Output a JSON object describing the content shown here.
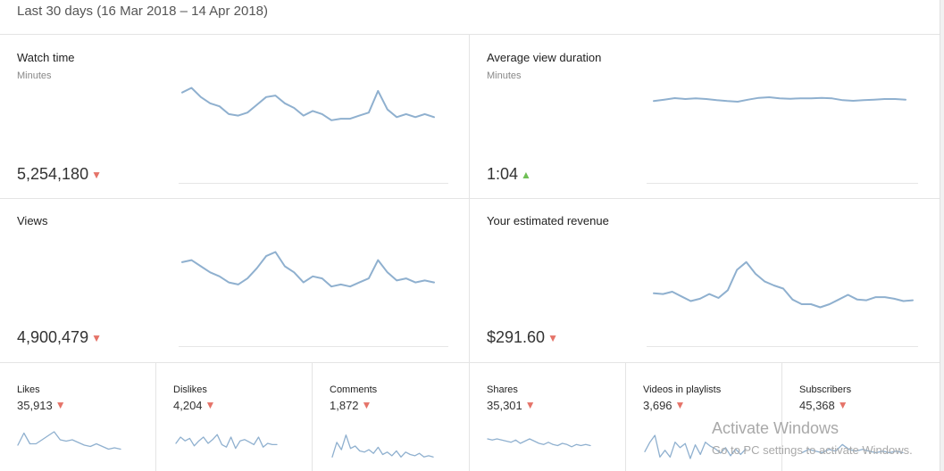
{
  "header": {
    "date_range": "Last 30 days (16 Mar 2018 – 14 Apr 2018)"
  },
  "cards": [
    {
      "title": "Watch time",
      "unit": "Minutes",
      "value": "5,254,180",
      "trend": "▼",
      "series": [
        61,
        64,
        58,
        54,
        52,
        47,
        46,
        48,
        53,
        58,
        59,
        54,
        51,
        46,
        49,
        47,
        43,
        44,
        44,
        46,
        48,
        62,
        50,
        45,
        47,
        45,
        47,
        45
      ]
    },
    {
      "title": "Average view duration",
      "unit": "Minutes",
      "value": "1:04",
      "trend": "▲",
      "series": [
        62.5,
        63.0,
        63.5,
        63.2,
        63.4,
        63.2,
        62.8,
        62.5,
        62.3,
        63.0,
        63.6,
        63.8,
        63.4,
        63.3,
        63.4,
        63.4,
        63.6,
        63.4,
        62.8,
        62.6,
        62.8,
        63.0,
        63.2,
        63.2,
        63.0
      ]
    },
    {
      "title": "Views",
      "unit": "",
      "value": "4,900,479",
      "trend": "▼",
      "series": [
        55,
        56,
        53,
        50,
        48,
        45,
        44,
        47,
        52,
        58,
        60,
        53,
        50,
        45,
        48,
        47,
        43,
        44,
        43,
        45,
        47,
        56,
        50,
        46,
        47,
        45,
        46,
        45
      ]
    },
    {
      "title": "Your estimated revenue",
      "unit": "",
      "value": "$291.60",
      "trend": "▼",
      "series": [
        10.0,
        9.9,
        10.2,
        9.6,
        9.0,
        9.3,
        9.9,
        9.4,
        10.4,
        13.0,
        14.0,
        12.5,
        11.5,
        11.0,
        10.6,
        9.2,
        8.6,
        8.6,
        8.2,
        8.6,
        9.2,
        9.8,
        9.2,
        9.1,
        9.5,
        9.5,
        9.3,
        9.0,
        9.1
      ]
    }
  ],
  "mini_cards": [
    {
      "title": "Likes",
      "value": "35,913",
      "trend": "▼",
      "series": [
        48,
        57,
        49,
        49,
        52,
        55,
        58,
        52,
        51,
        52,
        50,
        48,
        47,
        49,
        47,
        45,
        46,
        45
      ]
    },
    {
      "title": "Dislikes",
      "value": "4,204",
      "trend": "▼",
      "series": [
        50,
        55,
        52,
        54,
        48,
        52,
        55,
        50,
        53,
        57,
        49,
        47,
        55,
        46,
        52,
        53,
        51,
        49,
        55,
        47,
        50,
        49,
        49
      ]
    },
    {
      "title": "Comments",
      "value": "1,872",
      "trend": "▼",
      "series": [
        40,
        52,
        46,
        58,
        47,
        49,
        45,
        44,
        46,
        43,
        48,
        42,
        44,
        41,
        45,
        40,
        44,
        42,
        41,
        43,
        40,
        41,
        40
      ]
    },
    {
      "title": "Shares",
      "value": "35,301",
      "trend": "▼",
      "series": [
        54,
        53,
        54,
        53,
        52,
        51,
        53,
        50,
        52,
        54,
        52,
        50,
        49,
        51,
        49,
        48,
        50,
        49,
        47,
        49,
        48,
        49,
        48
      ]
    },
    {
      "title": "Videos in playlists",
      "value": "3,696",
      "trend": "▼",
      "series": [
        42,
        49,
        54,
        38,
        43,
        38,
        49,
        45,
        48,
        37,
        47,
        40,
        49,
        46,
        44,
        41,
        45,
        39,
        44,
        40,
        44
      ]
    },
    {
      "title": "Subscribers",
      "value": "45,368",
      "trend": "▼",
      "series": [
        43,
        45,
        44,
        43,
        45,
        44,
        48,
        45,
        44,
        45,
        44,
        43,
        44,
        43,
        44,
        43
      ]
    }
  ],
  "watermark": {
    "line1": "Activate Windows",
    "line2": "Go to PC settings to activate Windows."
  },
  "colors": {
    "spark": "#8fb0cf",
    "down": "#e57368",
    "up": "#6fbf55"
  }
}
